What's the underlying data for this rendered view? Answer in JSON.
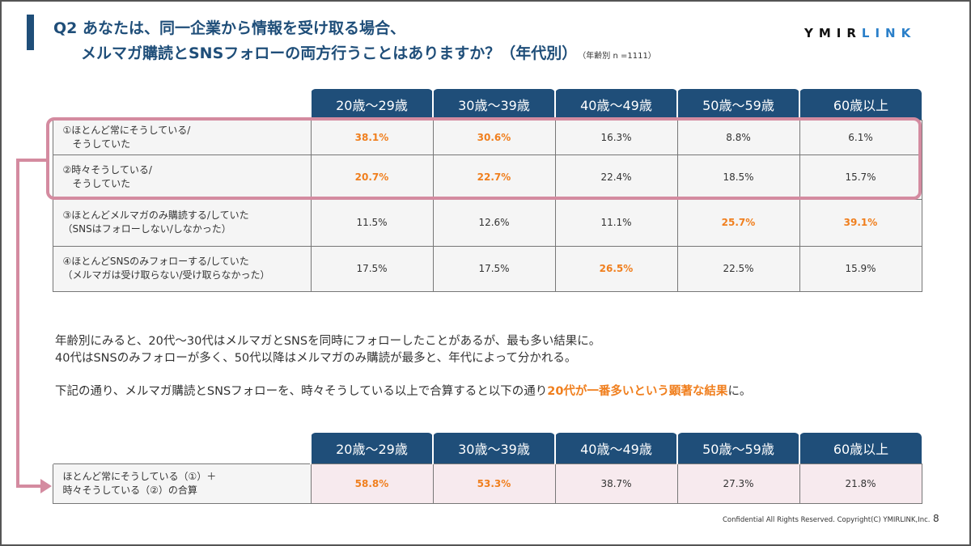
{
  "title": {
    "line1": "Q2 あなたは、同一企業から情報を受け取る場合、",
    "line2": "メルマガ購読とSNSフォローの両方行うことはありますか？（年代別）",
    "note": "（年齢別 n =1111）"
  },
  "logo": {
    "part1": "YMIR",
    "part2": "LINK"
  },
  "columns": [
    "20歳～29歳",
    "30歳～39歳",
    "40歳～49歳",
    "50歳～59歳",
    "60歳以上"
  ],
  "table1": {
    "rows": [
      {
        "label1": "①ほとんど常にそうしている/",
        "label2": "　そうしていた",
        "values": [
          "38.1%",
          "30.6%",
          "16.3%",
          "8.8%",
          "6.1%"
        ]
      },
      {
        "label1": "②時々そうしている/",
        "label2": "　そうしていた",
        "values": [
          "20.7%",
          "22.7%",
          "22.4%",
          "18.5%",
          "15.7%"
        ]
      },
      {
        "label1": "③ほとんどメルマガのみ購読する/していた",
        "label2": "（SNSはフォローしない/しなかった）",
        "values": [
          "11.5%",
          "12.6%",
          "11.1%",
          "25.7%",
          "39.1%"
        ]
      },
      {
        "label1": "④ほとんどSNSのみフォローする/していた",
        "label2": "（メルマガは受け取らない/受け取らなかった）",
        "values": [
          "17.5%",
          "17.5%",
          "26.5%",
          "22.5%",
          "15.9%"
        ]
      }
    ]
  },
  "paragraphs": {
    "p1": "年齢別にみると、20代～30代はメルマガとSNSを同時にフォローしたことがあるが、最も多い結果に。",
    "p2": "40代はSNSのみフォローが多く、50代以降はメルマガのみ購読が最多と、年代によって分かれる。",
    "p3a": "下記の通り、メルマガ購読とSNSフォローを、時々そうしている以上で合算すると以下の通り",
    "p3b": "20代が一番多いという顕著な結果",
    "p3c": "に。"
  },
  "table2": {
    "label1": "ほとんど常にそうしている（①）＋",
    "label2": "時々そうしている（②）の合算",
    "values": [
      "58.8%",
      "53.3%",
      "38.7%",
      "27.3%",
      "21.8%"
    ]
  },
  "footer": {
    "copyright": "Confidential All Rights Reserved. Copyright(C) YMIRLINK,Inc.",
    "page": "8"
  },
  "colors": {
    "navy": "#1f4e79",
    "orange": "#f07f1e",
    "pink": "#d48ba0"
  }
}
